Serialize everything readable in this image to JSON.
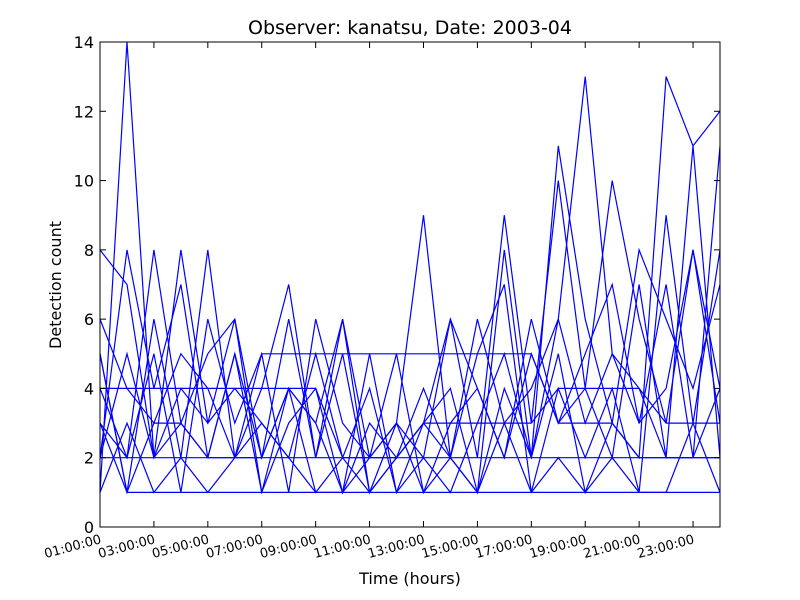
{
  "chart_data": {
    "type": "line",
    "title": "Observer: kanatsu, Date: 2003-04",
    "xlabel": "Time (hours)",
    "ylabel": "Detection count",
    "ylim": [
      0,
      14
    ],
    "yticks": [
      0,
      2,
      4,
      6,
      8,
      10,
      12,
      14
    ],
    "xlim_hours": [
      1,
      24
    ],
    "xtick_labels": [
      "01:00:00",
      "03:00:00",
      "05:00:00",
      "07:00:00",
      "09:00:00",
      "11:00:00",
      "13:00:00",
      "15:00:00",
      "17:00:00",
      "19:00:00",
      "21:00:00",
      "23:00:00"
    ],
    "grid": false,
    "legend": "none",
    "color": "#0000ff",
    "series": [
      {
        "x": [
          1,
          2,
          3,
          4,
          5,
          6,
          7,
          8,
          9,
          10,
          11,
          12,
          13,
          14,
          15,
          16,
          17,
          18,
          19,
          20,
          21,
          22,
          23,
          24
        ],
        "values": [
          8,
          7,
          2,
          3,
          2,
          5,
          2,
          4,
          3,
          6,
          1,
          3,
          9,
          2,
          6,
          3,
          4,
          6,
          13,
          5,
          4,
          2,
          11,
          2
        ]
      },
      {
        "x": [
          1,
          2,
          3,
          4,
          5,
          6,
          7,
          8,
          9,
          10,
          11,
          12,
          13,
          14,
          15,
          16,
          17,
          18,
          19,
          20,
          21,
          22,
          23,
          24
        ],
        "values": [
          1,
          14,
          2,
          8,
          3,
          4,
          3,
          2,
          5,
          2,
          1,
          2,
          3,
          2,
          1,
          8,
          2,
          11,
          6,
          3,
          2,
          13,
          11,
          12
        ]
      },
      {
        "x": [
          1,
          2,
          3,
          4,
          5,
          6,
          7,
          8,
          9,
          10,
          11,
          12,
          13,
          14,
          15,
          16,
          17,
          18,
          19,
          20,
          21,
          22,
          23,
          24
        ],
        "values": [
          3,
          2,
          8,
          3,
          5,
          6,
          2,
          4,
          1,
          2,
          4,
          1,
          3,
          6,
          2,
          9,
          3,
          10,
          4,
          10,
          6,
          3,
          8,
          4
        ]
      },
      {
        "x": [
          1,
          2,
          3,
          4,
          5,
          6,
          7,
          8,
          9,
          10,
          11,
          12,
          13,
          14,
          15,
          16,
          17,
          18,
          19,
          20,
          21,
          22,
          23,
          24
        ],
        "values": [
          5,
          1,
          6,
          2,
          8,
          2,
          4,
          7,
          2,
          6,
          2,
          5,
          1,
          3,
          4,
          2,
          5,
          3,
          5,
          7,
          3,
          7,
          2,
          11
        ]
      },
      {
        "x": [
          1,
          2,
          3,
          4,
          5,
          6,
          7,
          8,
          9,
          10,
          11,
          12,
          13,
          14,
          15,
          16,
          17,
          18,
          19,
          20,
          21,
          22,
          23,
          24
        ],
        "values": [
          2,
          8,
          4,
          7,
          2,
          5,
          1,
          3,
          4,
          1,
          3,
          2,
          4,
          2,
          5,
          7,
          1,
          4,
          2,
          4,
          1,
          9,
          3,
          8
        ]
      },
      {
        "x": [
          1,
          2,
          3,
          4,
          5,
          6,
          7,
          8,
          9,
          10,
          11,
          12,
          13,
          14,
          15,
          16,
          17,
          18,
          19,
          20,
          21,
          22,
          23,
          24
        ],
        "values": [
          4,
          2,
          5,
          1,
          6,
          3,
          5,
          1,
          6,
          3,
          2,
          3,
          2,
          1,
          3,
          5,
          2,
          6,
          3,
          5,
          3,
          4,
          8,
          3
        ]
      },
      {
        "x": [
          1,
          2,
          3,
          4,
          5,
          6,
          7,
          8,
          9,
          10,
          11,
          12,
          13,
          14,
          15,
          16,
          17,
          18,
          19,
          20,
          21,
          22,
          23,
          24
        ],
        "values": [
          6,
          4,
          3,
          5,
          4,
          2,
          2,
          6,
          2,
          5,
          1,
          2,
          3,
          4,
          1,
          4,
          2,
          5,
          1,
          3,
          8,
          6,
          4,
          7
        ]
      },
      {
        "x": [
          1,
          2,
          3,
          4,
          5,
          6,
          7,
          8,
          9,
          10,
          11,
          12,
          13,
          14,
          15,
          16,
          17,
          18,
          19,
          20,
          21,
          22,
          23,
          24
        ],
        "values": [
          2,
          5,
          2,
          4,
          3,
          6,
          1,
          4,
          3,
          1,
          5,
          1,
          2,
          6,
          4,
          2,
          6,
          3,
          4,
          2,
          7,
          2,
          2,
          4
        ]
      },
      {
        "x": [
          1,
          2,
          3,
          4,
          5,
          6,
          7,
          8,
          9,
          10,
          11,
          12,
          13,
          14,
          15,
          16,
          17,
          18,
          19,
          20,
          21,
          22,
          23,
          24
        ],
        "values": [
          1,
          3,
          1,
          2,
          1,
          2,
          3,
          2,
          1,
          1,
          2,
          3,
          1,
          2,
          1,
          3,
          1,
          2,
          1,
          2,
          1,
          1,
          3,
          1
        ]
      },
      {
        "x": [
          1,
          2,
          3,
          4,
          5,
          6,
          7,
          8,
          9,
          10,
          11,
          12,
          13,
          14,
          15,
          16,
          17,
          18,
          19,
          20,
          21,
          22,
          23,
          24
        ],
        "values": [
          5,
          1,
          3,
          3,
          2,
          2,
          5,
          5,
          5,
          5,
          5,
          5,
          5,
          5,
          5,
          5,
          5,
          3,
          3,
          3,
          2,
          2,
          2,
          2
        ]
      },
      {
        "x": [
          1,
          2,
          3,
          4,
          5,
          6,
          7,
          8,
          9,
          10,
          11,
          12,
          13,
          14,
          15,
          16,
          17,
          18,
          19,
          20,
          21,
          22,
          23,
          24
        ],
        "values": [
          4,
          4,
          4,
          4,
          4,
          4,
          4,
          4,
          4,
          2,
          2,
          2,
          3,
          3,
          3,
          3,
          3,
          4,
          4,
          4,
          4,
          3,
          3,
          3
        ]
      },
      {
        "x": [
          1,
          2,
          3,
          4,
          5,
          6,
          7,
          8,
          9,
          10,
          11,
          12,
          13,
          14,
          15,
          16,
          17,
          18,
          19,
          20,
          21,
          22,
          23,
          24
        ],
        "values": [
          3,
          1,
          1,
          1,
          1,
          1,
          1,
          1,
          1,
          1,
          1,
          1,
          1,
          1,
          1,
          1,
          1,
          1,
          1,
          1,
          1,
          1,
          1,
          1
        ]
      },
      {
        "x": [
          1,
          2,
          3,
          4,
          5,
          6,
          7,
          8,
          9,
          10,
          11,
          12,
          13,
          14,
          15,
          16,
          17,
          18,
          19,
          20,
          21,
          22,
          23,
          24
        ],
        "values": [
          2,
          2,
          2,
          2,
          2,
          2,
          2,
          2,
          2,
          2,
          2,
          2,
          2,
          2,
          2,
          2,
          2,
          2,
          2,
          2,
          2,
          2,
          2,
          2
        ]
      }
    ]
  }
}
